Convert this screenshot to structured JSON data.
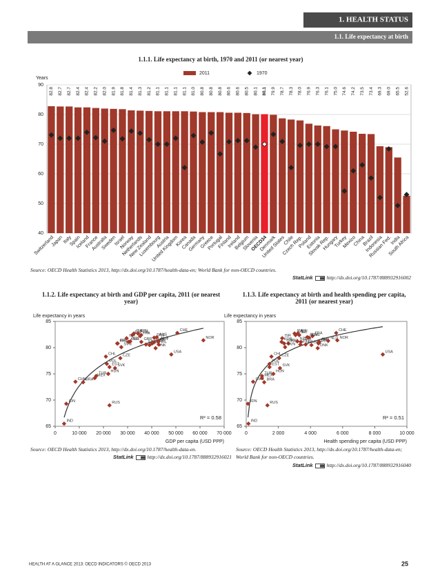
{
  "header": {
    "chapter": "1. HEALTH STATUS",
    "section": "1.1. Life expectancy at birth"
  },
  "chart_data": [
    {
      "type": "bar",
      "title": "1.1.1. Life expectancy at birth, 1970 and 2011 (or nearest year)",
      "y_label": "Years",
      "categories": [
        "Switzerland",
        "Japan",
        "Italy",
        "Spain",
        "Iceland",
        "France",
        "Australia",
        "Sweden",
        "Israel",
        "Norway",
        "Netherlands",
        "New Zealand",
        "Luxembourg",
        "Austria",
        "United Kingdom",
        "Korea",
        "Canada",
        "Germany",
        "Greece",
        "Portugal",
        "Finland",
        "Ireland",
        "Belgium",
        "Slovenia",
        "OECD34",
        "Denmark",
        "United States",
        "Chile",
        "Czech Rep.",
        "Poland",
        "Estonia",
        "Slovak Rep.",
        "Hungary",
        "Turkey",
        "Mexico",
        "China",
        "Brazil",
        "Indonesia",
        "Russian Fed.",
        "India",
        "South Africa"
      ],
      "series": [
        {
          "name": "2011",
          "color": "#a0392b",
          "values": [
            82.8,
            82.7,
            82.7,
            82.4,
            82.4,
            82.2,
            82.0,
            81.9,
            81.8,
            81.4,
            81.3,
            81.2,
            81.1,
            81.1,
            81.1,
            81.1,
            81.0,
            80.8,
            80.8,
            80.8,
            80.6,
            80.6,
            80.5,
            80.1,
            80.1,
            79.9,
            78.7,
            78.3,
            78.0,
            76.9,
            76.3,
            76.1,
            75.0,
            74.6,
            74.2,
            73.5,
            73.4,
            69.3,
            69.0,
            65.5,
            52.6
          ],
          "value_labels": [
            "82.8",
            "82.7",
            "82.7",
            "82.4",
            "82.4",
            "82.2",
            "82.0",
            "81.9",
            "81.8",
            "81.4",
            "81.3",
            "81.2",
            "81.1",
            "81.1",
            "81.1",
            "81.1",
            "81.0",
            "80.8",
            "80.8",
            "80.8",
            "80.6",
            "80.6",
            "80.5",
            "80.1",
            "80.1",
            "79.9",
            "78.7",
            "78.3",
            "78.0",
            "76.9",
            "76.3",
            "76.1",
            "75.0",
            "74.6",
            "74.2",
            "73.5",
            "73.4",
            "69.3",
            "69.0",
            "65.5",
            "52.6"
          ]
        },
        {
          "name": "1970",
          "color": "#222222",
          "values": [
            73.1,
            72.0,
            72.0,
            72.0,
            74.0,
            72.2,
            71.0,
            74.7,
            71.8,
            74.4,
            73.7,
            71.5,
            70.0,
            70.0,
            72.0,
            62.1,
            72.9,
            70.7,
            73.8,
            66.7,
            70.8,
            71.2,
            71.2,
            69.0,
            70.0,
            73.3,
            70.9,
            62.1,
            69.6,
            70.0,
            70.0,
            69.2,
            69.2,
            54.2,
            61.0,
            63.0,
            58.6,
            52.0,
            68.4,
            49.3,
            53.0
          ]
        }
      ],
      "highlight": "OECD34",
      "highlight_color": "#e8202a",
      "ylim": [
        40,
        90
      ],
      "yticks": [
        40,
        50,
        60,
        70,
        80,
        90
      ],
      "grid": true,
      "source": "Source: OECD Health Statistics 2013, http://dx.doi.org/10.1787/health-data-en; World Bank for non-OECD countries.",
      "statlink_label": "StatLink",
      "statlink": "http://dx.doi.org/10.1787/888932916002"
    },
    {
      "type": "scatter",
      "title": "1.1.2. Life expectancy at birth and GDP per capita, 2011 (or nearest year)",
      "y_label": "Life expectancy in years",
      "x_label": "GDP per capita (USD PPP)",
      "color": "#a0392b",
      "labels": [
        "IND",
        "IDN",
        "CHN",
        "BRA",
        "MEX",
        "TUR",
        "RUS",
        "CHL",
        "POL",
        "HUN",
        "EST",
        "SVK",
        "CZE",
        "PRT",
        "GRC",
        "SVN",
        "ISR",
        "KOR",
        "NZL",
        "ESP",
        "ITA",
        "JPN",
        "FRA",
        "ISL",
        "GBR",
        "FIN",
        "BEL",
        "DEU",
        "CAN",
        "SWE",
        "DNK",
        "AUS",
        "AUT",
        "NLD",
        "IRL",
        "USA",
        "CHE",
        "NOR"
      ],
      "x": [
        3700,
        4600,
        8400,
        11600,
        16400,
        17000,
        22500,
        21000,
        21400,
        22000,
        22500,
        24800,
        27000,
        25700,
        25900,
        27400,
        29600,
        30300,
        31100,
        32000,
        32600,
        34300,
        35200,
        35600,
        35700,
        37600,
        39100,
        40200,
        40900,
        41000,
        41600,
        42100,
        42700,
        42800,
        42900,
        48100,
        50600,
        61400
      ],
      "values": [
        65.5,
        69.3,
        73.5,
        73.4,
        74.2,
        74.6,
        69.0,
        78.3,
        76.9,
        75.0,
        76.3,
        76.1,
        78.0,
        80.8,
        80.8,
        80.1,
        81.8,
        81.1,
        81.2,
        82.4,
        82.7,
        82.7,
        82.2,
        82.4,
        81.1,
        80.6,
        80.5,
        80.8,
        81.0,
        81.9,
        79.9,
        82.0,
        81.1,
        81.3,
        80.6,
        78.7,
        82.8,
        81.4
      ],
      "annotation": "R² = 0.58",
      "trendline": true,
      "xlim": [
        0,
        70000
      ],
      "xticks": [
        0,
        {
          "value": 10000,
          "label": "10 000"
        },
        {
          "value": 20000,
          "label": "20 000"
        },
        {
          "value": 30000,
          "label": "30 000"
        },
        {
          "value": 40000,
          "label": "40 000"
        },
        {
          "value": 50000,
          "label": "50 000"
        },
        {
          "value": 60000,
          "label": "60 000"
        },
        {
          "value": 70000,
          "label": "70 000"
        }
      ],
      "ylim": [
        65,
        85
      ],
      "yticks": [
        65,
        70,
        75,
        80,
        85
      ],
      "grid": false,
      "source": "Source: OECD Health Statistics 2013, http://dx.doi.org/10.1787/health-data-en.",
      "statlink_label": "StatLink",
      "statlink": "http://dx.doi.org/10.1787/888932916021"
    },
    {
      "type": "scatter",
      "title": "1.1.3. Life expectancy at birth and health spending per capita, 2011 (or nearest year)",
      "y_label": "Life expectancy in years",
      "x_label": "Health spending per capita (USD PPP)",
      "color": "#a0392b",
      "labels": [
        "IND",
        "IDN",
        "CHN",
        "BRA",
        "MEX",
        "TUR",
        "RUS",
        "CHL",
        "POL",
        "HUN",
        "EST",
        "SVK",
        "CZE",
        "PRT",
        "GRC",
        "SVN",
        "ISR",
        "KOR",
        "NZL",
        "ESP",
        "ITA",
        "JPN",
        "FRA",
        "ISL",
        "GBR",
        "FIN",
        "BEL",
        "DEU",
        "CAN",
        "SWE",
        "DNK",
        "AUS",
        "AUT",
        "NLD",
        "IRL",
        "USA",
        "CHE",
        "NOR"
      ],
      "x": [
        140,
        110,
        430,
        1120,
        980,
        980,
        1320,
        1570,
        1450,
        1690,
        1450,
        2100,
        2050,
        2620,
        2360,
        2420,
        2240,
        2200,
        3180,
        3070,
        3010,
        3210,
        4120,
        3300,
        3400,
        3370,
        4060,
        4500,
        4500,
        3900,
        4450,
        3800,
        4550,
        5100,
        3700,
        8500,
        5600,
        5670
      ],
      "values": [
        65.5,
        69.3,
        73.5,
        73.4,
        74.2,
        74.6,
        69.0,
        78.3,
        76.9,
        75.0,
        76.3,
        76.1,
        78.0,
        80.8,
        80.8,
        80.1,
        81.8,
        81.1,
        81.2,
        82.4,
        82.7,
        82.7,
        82.2,
        82.4,
        81.1,
        80.6,
        80.5,
        80.8,
        81.0,
        81.9,
        79.9,
        82.0,
        81.1,
        81.3,
        80.6,
        78.7,
        82.8,
        81.4
      ],
      "annotation": "R² = 0.51",
      "trendline": true,
      "xlim": [
        0,
        10000
      ],
      "xticks": [
        0,
        {
          "value": 2000,
          "label": "2 000"
        },
        {
          "value": 4000,
          "label": "4 000"
        },
        {
          "value": 6000,
          "label": "6 000"
        },
        {
          "value": 8000,
          "label": "8 000"
        },
        {
          "value": 10000,
          "label": "10 000"
        }
      ],
      "ylim": [
        65,
        85
      ],
      "yticks": [
        65,
        70,
        75,
        80,
        85
      ],
      "grid": false,
      "source": "Source: OECD Health Statistics 2013, http://dx.doi.org/10.1787/health-data-en; World Bank for non-OECD countries.",
      "statlink_label": "StatLink",
      "statlink": "http://dx.doi.org/10.1787/888932916040"
    }
  ],
  "footer": {
    "text": "HEALTH AT A GLANCE 2013: OECD INDICATORS © OECD 2013",
    "page": 25
  }
}
